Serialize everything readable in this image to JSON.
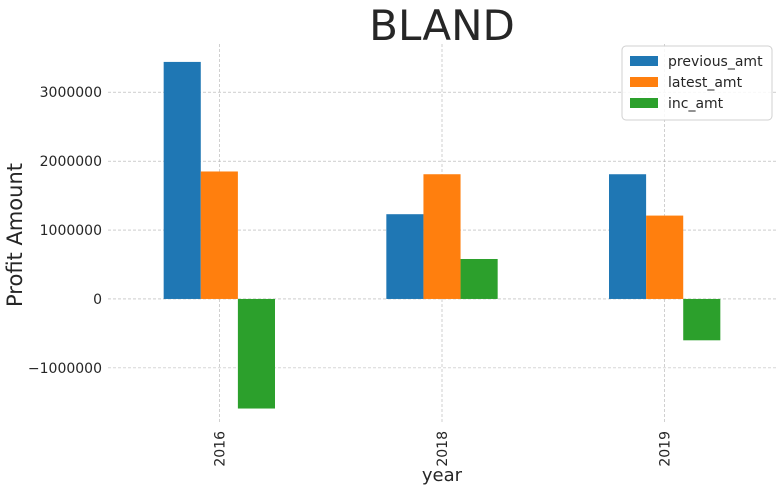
{
  "chart_data": {
    "type": "bar",
    "title": "BLAND",
    "xlabel": "year",
    "ylabel": "Profit Amount",
    "categories": [
      "2016",
      "2018",
      "2019"
    ],
    "series": [
      {
        "name": "previous_amt",
        "color": "#1f77b4",
        "values": [
          3440000,
          1230000,
          1810000
        ]
      },
      {
        "name": "latest_amt",
        "color": "#ff7f0e",
        "values": [
          1850000,
          1810000,
          1210000
        ]
      },
      {
        "name": "inc_amt",
        "color": "#2ca02c",
        "values": [
          -1590000,
          580000,
          -600000
        ]
      }
    ],
    "ylim": [
      -1800000,
      3700000
    ],
    "yticks": [
      -1000000,
      0,
      1000000,
      2000000,
      3000000
    ],
    "ytick_labels": [
      "−1000000",
      "0",
      "1000000",
      "2000000",
      "3000000"
    ],
    "grid": true,
    "legend_position": "top-right"
  }
}
